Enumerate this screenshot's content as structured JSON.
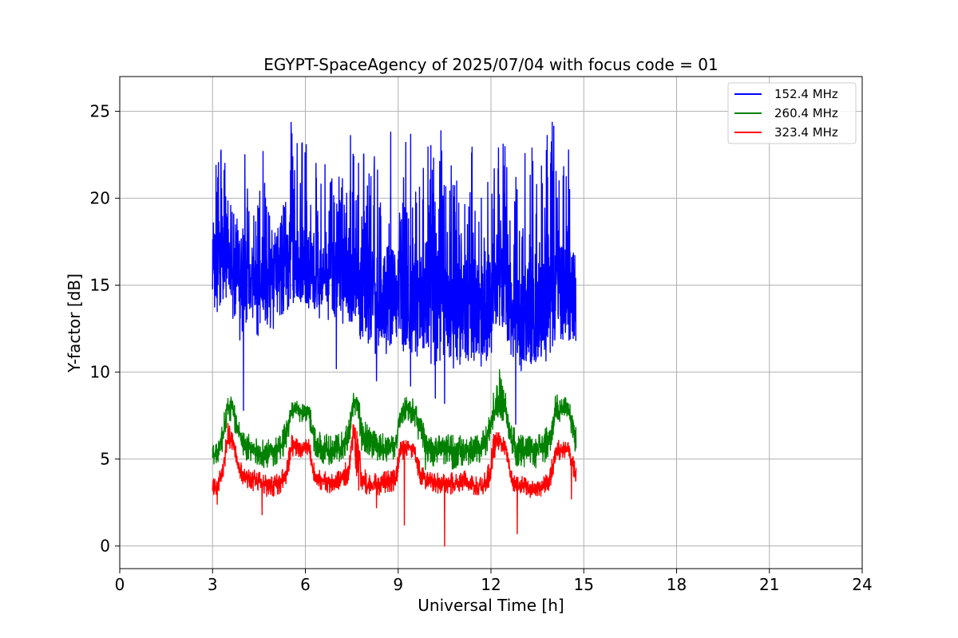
{
  "chart_data": {
    "type": "line",
    "title": "EGYPT-SpaceAgency of 2025/07/04 with focus code = 01",
    "xlabel": "Universal Time [h]",
    "ylabel": "Y-factor [dB]",
    "xlim": [
      0,
      24
    ],
    "ylim": [
      -1.3,
      27
    ],
    "xticks": [
      0,
      3,
      6,
      9,
      12,
      15,
      18,
      21,
      24
    ],
    "yticks": [
      0,
      5,
      10,
      15,
      20,
      25
    ],
    "grid": true,
    "legend_position": "top-right",
    "series": [
      {
        "name": "152.4 MHz",
        "color": "#0000ff",
        "x": [
          3.0,
          3.1,
          3.25,
          3.4,
          3.55,
          3.7,
          3.85,
          4.0,
          4.2,
          4.4,
          4.6,
          4.8,
          5.0,
          5.2,
          5.4,
          5.55,
          5.7,
          5.85,
          6.0,
          6.2,
          6.4,
          6.6,
          6.8,
          7.0,
          7.2,
          7.4,
          7.6,
          7.8,
          8.0,
          8.2,
          8.4,
          8.6,
          8.8,
          9.0,
          9.2,
          9.4,
          9.6,
          9.8,
          10.0,
          10.2,
          10.4,
          10.6,
          10.8,
          11.0,
          11.2,
          11.4,
          11.6,
          11.8,
          12.0,
          12.2,
          12.4,
          12.6,
          12.8,
          13.0,
          13.2,
          13.4,
          13.6,
          13.8,
          14.0,
          14.2,
          14.4,
          14.6,
          14.75
        ],
        "values": [
          16.0,
          16.5,
          16.2,
          16.8,
          16.0,
          15.5,
          15.8,
          16.2,
          15.6,
          15.4,
          15.8,
          15.6,
          15.5,
          15.8,
          16.2,
          16.8,
          16.5,
          16.2,
          16.3,
          16.0,
          15.7,
          15.8,
          15.5,
          15.6,
          15.8,
          15.7,
          15.2,
          14.5,
          14.2,
          14.0,
          14.3,
          14.1,
          14.4,
          14.5,
          14.0,
          14.6,
          14.2,
          14.0,
          14.4,
          13.8,
          14.2,
          13.5,
          13.6,
          14.1,
          13.4,
          13.7,
          13.4,
          13.8,
          14.5,
          15.2,
          14.8,
          14.0,
          13.5,
          13.2,
          13.4,
          13.0,
          13.6,
          14.0,
          14.8,
          15.2,
          14.8,
          14.5,
          14.2
        ],
        "max_values": [
          18.3,
          22.0,
          23.5,
          22.5,
          21.5,
          19.5,
          20.0,
          24.7,
          19.5,
          19.0,
          23.5,
          19.5,
          18.0,
          19.5,
          22.5,
          25.6,
          24.3,
          23.0,
          25.6,
          24.3,
          23.5,
          22.5,
          22.5,
          20.5,
          23.5,
          24.3,
          22.0,
          22.8,
          22.5,
          22.8,
          22.0,
          22.5,
          24.3,
          23.0,
          23.5,
          24.3,
          21.5,
          24.0,
          23.5,
          23.0,
          24.0,
          22.0,
          23.5,
          22.5,
          23.0,
          24.0,
          22.8,
          22.5,
          23.0,
          25.0,
          24.0,
          22.0,
          21.5,
          23.5,
          22.0,
          24.0,
          22.5,
          24.5,
          25.0,
          23.0,
          22.5,
          23.2,
          23.2
        ],
        "min_values": [
          12.5,
          12.4,
          13.0,
          13.5,
          14.0,
          12.5,
          11.0,
          12.0,
          12.5,
          12.0,
          12.2,
          12.5,
          12.3,
          12.8,
          13.5,
          13.8,
          14.2,
          14.0,
          13.5,
          14.0,
          13.2,
          12.8,
          13.0,
          13.0,
          12.5,
          12.8,
          12.5,
          11.8,
          11.0,
          11.2,
          10.5,
          11.0,
          11.3,
          11.0,
          11.2,
          11.0,
          10.8,
          11.0,
          10.5,
          10.3,
          10.5,
          10.0,
          10.2,
          10.3,
          10.5,
          10.2,
          10.0,
          10.3,
          11.0,
          12.0,
          12.5,
          11.0,
          10.0,
          9.5,
          10.0,
          10.5,
          10.2,
          10.5,
          11.0,
          11.5,
          11.0,
          10.8,
          11.0
        ],
        "spikes": [
          [
            4.0,
            7.8
          ],
          [
            7.0,
            10.2
          ],
          [
            8.3,
            9.5
          ],
          [
            9.4,
            9.2
          ],
          [
            10.5,
            8.2
          ],
          [
            10.2,
            8.5
          ],
          [
            12.8,
            7.0
          ]
        ]
      },
      {
        "name": "260.4 MHz",
        "color": "#008000",
        "x": [
          3.0,
          3.2,
          3.35,
          3.5,
          3.65,
          3.8,
          4.0,
          4.3,
          4.6,
          4.9,
          5.2,
          5.4,
          5.55,
          5.7,
          5.9,
          6.1,
          6.3,
          6.6,
          6.9,
          7.2,
          7.4,
          7.55,
          7.7,
          7.85,
          8.0,
          8.3,
          8.6,
          8.9,
          9.1,
          9.3,
          9.5,
          9.7,
          9.9,
          10.2,
          10.5,
          10.8,
          11.1,
          11.4,
          11.7,
          11.95,
          12.1,
          12.3,
          12.5,
          12.65,
          12.8,
          13.1,
          13.4,
          13.7,
          13.9,
          14.1,
          14.3,
          14.5,
          14.75
        ],
        "values": [
          5.0,
          5.5,
          6.5,
          8.3,
          8.0,
          6.8,
          5.8,
          5.6,
          5.3,
          5.4,
          5.6,
          6.5,
          7.8,
          7.9,
          7.6,
          7.8,
          6.0,
          5.4,
          5.3,
          5.8,
          6.2,
          8.3,
          8.2,
          6.0,
          6.3,
          5.7,
          5.6,
          5.8,
          7.8,
          8.0,
          7.8,
          6.8,
          5.9,
          5.5,
          5.8,
          5.5,
          5.5,
          5.4,
          5.7,
          6.5,
          8.0,
          8.2,
          7.8,
          6.2,
          5.7,
          5.6,
          5.5,
          5.8,
          6.2,
          7.8,
          8.0,
          7.9,
          6.0
        ],
        "max_values": [
          5.8,
          6.2,
          7.5,
          8.9,
          8.8,
          7.5,
          6.5,
          6.4,
          6.3,
          6.2,
          6.4,
          7.5,
          8.4,
          8.4,
          8.2,
          8.4,
          6.8,
          6.5,
          6.3,
          6.6,
          7.2,
          8.9,
          9.0,
          7.0,
          7.2,
          6.5,
          6.5,
          6.5,
          8.8,
          8.5,
          8.5,
          7.5,
          6.8,
          6.3,
          6.6,
          6.4,
          6.4,
          6.3,
          6.5,
          7.5,
          9.0,
          10.6,
          8.6,
          7.2,
          6.6,
          6.4,
          6.3,
          6.6,
          7.2,
          9.2,
          8.6,
          8.5,
          6.8
        ],
        "min_values": [
          4.6,
          4.8,
          5.5,
          7.2,
          7.0,
          6.0,
          5.0,
          4.8,
          4.5,
          4.5,
          4.8,
          5.5,
          7.2,
          7.3,
          7.0,
          7.2,
          5.2,
          4.7,
          4.6,
          5.0,
          5.4,
          7.5,
          7.2,
          5.0,
          5.3,
          4.8,
          4.8,
          5.0,
          7.0,
          7.2,
          7.0,
          5.8,
          4.2,
          4.4,
          4.6,
          4.4,
          4.5,
          4.5,
          4.8,
          5.6,
          7.2,
          7.2,
          7.0,
          5.2,
          4.6,
          4.5,
          4.4,
          4.7,
          5.3,
          7.0,
          7.2,
          7.0,
          5.2
        ]
      },
      {
        "name": "323.4 MHz",
        "color": "#ff0000",
        "x": [
          3.0,
          3.2,
          3.35,
          3.5,
          3.65,
          3.8,
          4.0,
          4.3,
          4.6,
          4.9,
          5.2,
          5.4,
          5.55,
          5.7,
          5.9,
          6.1,
          6.3,
          6.6,
          6.9,
          7.2,
          7.4,
          7.55,
          7.7,
          7.85,
          8.0,
          8.3,
          8.6,
          8.9,
          9.1,
          9.3,
          9.5,
          9.7,
          9.9,
          10.2,
          10.5,
          10.8,
          11.1,
          11.4,
          11.7,
          11.95,
          12.1,
          12.3,
          12.5,
          12.65,
          12.8,
          13.1,
          13.4,
          13.7,
          13.9,
          14.1,
          14.3,
          14.5,
          14.75
        ],
        "values": [
          3.3,
          3.5,
          4.5,
          6.5,
          6.2,
          4.8,
          4.0,
          3.8,
          3.6,
          3.5,
          3.6,
          4.2,
          5.8,
          5.8,
          5.6,
          5.8,
          4.0,
          3.7,
          3.6,
          3.9,
          4.3,
          6.8,
          5.2,
          3.8,
          3.5,
          3.4,
          3.6,
          3.8,
          5.5,
          5.8,
          5.6,
          4.2,
          3.8,
          3.6,
          3.7,
          3.5,
          3.8,
          3.5,
          3.4,
          4.0,
          5.8,
          6.0,
          5.6,
          3.8,
          3.5,
          3.4,
          3.3,
          3.5,
          3.8,
          5.4,
          5.6,
          5.7,
          3.9
        ],
        "max_values": [
          3.9,
          4.2,
          5.4,
          7.1,
          6.8,
          5.5,
          4.6,
          4.4,
          4.2,
          4.1,
          4.2,
          5.0,
          6.5,
          6.3,
          6.2,
          6.4,
          4.6,
          4.3,
          4.2,
          4.5,
          5.2,
          7.2,
          6.5,
          4.6,
          4.3,
          4.2,
          4.3,
          4.4,
          6.2,
          6.2,
          6.0,
          4.8,
          4.4,
          4.2,
          4.3,
          4.2,
          4.6,
          4.1,
          4.0,
          4.8,
          6.6,
          6.5,
          6.0,
          4.4,
          4.1,
          4.0,
          3.9,
          4.1,
          4.5,
          6.1,
          6.1,
          6.2,
          4.6
        ],
        "min_values": [
          2.9,
          3.0,
          3.8,
          5.6,
          5.4,
          4.2,
          3.4,
          3.1,
          2.9,
          2.8,
          3.0,
          3.6,
          5.0,
          5.2,
          5.0,
          5.2,
          3.4,
          3.1,
          3.0,
          3.3,
          3.6,
          5.8,
          3.0,
          3.2,
          2.9,
          2.8,
          3.0,
          3.2,
          4.8,
          5.2,
          5.0,
          3.6,
          3.2,
          3.0,
          3.1,
          2.9,
          3.2,
          2.9,
          2.8,
          3.4,
          5.0,
          5.4,
          5.0,
          3.2,
          2.9,
          2.8,
          2.7,
          2.9,
          3.2,
          4.8,
          5.0,
          5.0,
          3.3
        ],
        "spikes": [
          [
            3.15,
            2.4
          ],
          [
            4.6,
            1.8
          ],
          [
            8.3,
            2.2
          ],
          [
            9.2,
            1.2
          ],
          [
            10.5,
            0.0
          ],
          [
            12.85,
            0.7
          ],
          [
            14.6,
            2.7
          ]
        ]
      }
    ]
  }
}
